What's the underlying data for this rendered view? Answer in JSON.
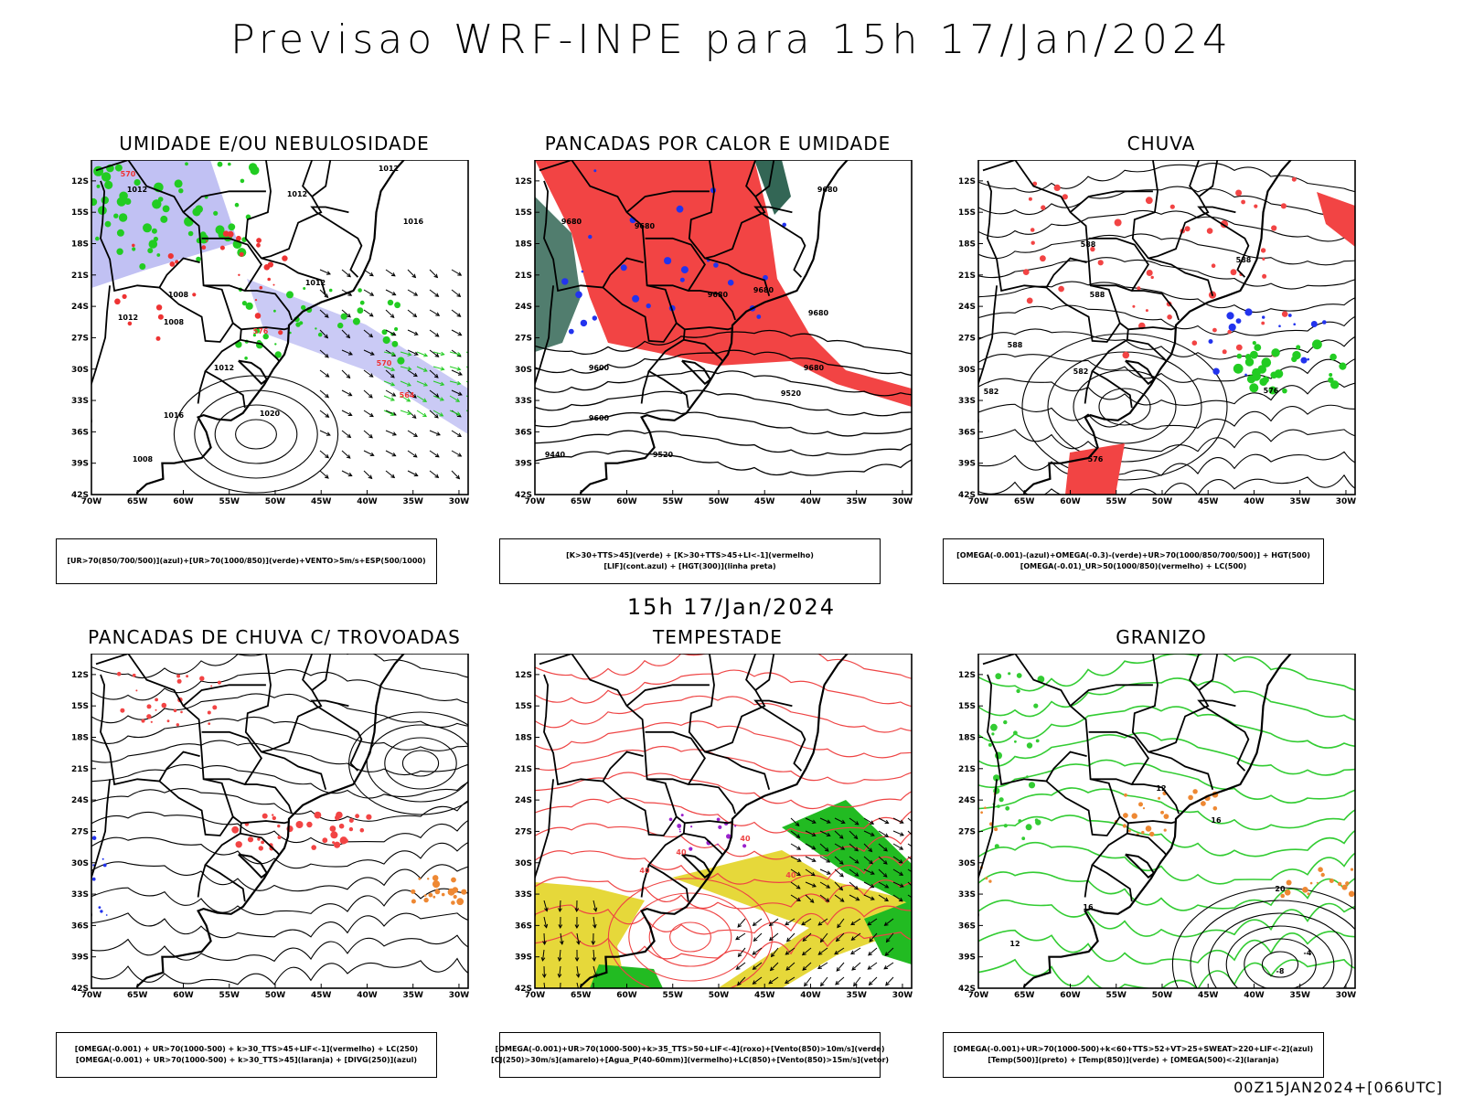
{
  "title": "Previsao WRF-INPE  para 15h 17/Jan/2024",
  "subtitle": "15h 17/Jan/2024",
  "footer": "00Z15JAN2024+[066UTC]",
  "axes": {
    "lat_ticks": [
      "12S",
      "15S",
      "18S",
      "21S",
      "24S",
      "27S",
      "30S",
      "33S",
      "36S",
      "39S",
      "42S"
    ],
    "lon_ticks": [
      "70W",
      "65W",
      "60W",
      "55W",
      "50W",
      "45W",
      "40W",
      "35W",
      "30W"
    ]
  },
  "panels": [
    {
      "title": "UMIDADE E/OU NEBULOSIDADE",
      "legend": [
        "[UR>70(850/700/500)](azul)+[UR>70(1000/850)](verde)+VENTO>5m/s+ESP(500/1000)"
      ],
      "labels": [
        "1012",
        "1012",
        "1012",
        "1016",
        "1012",
        "1008",
        "1012",
        "1008",
        "1012",
        "1016",
        "1020",
        "1008",
        "570",
        "576",
        "570",
        "564"
      ],
      "colors": {
        "blue": "#a7a6ee",
        "green": "#22cc22",
        "red": "#ee3333"
      }
    },
    {
      "title": "PANCADAS POR CALOR E UMIDADE",
      "legend": [
        "[K>30+TTS>45](verde) + [K>30+TTS>45+LI<-1](vermelho)",
        "[LIF](cont.azul) + [HGT(300)](linha preta)"
      ],
      "labels": [
        "9680",
        "9680",
        "9680",
        "9680",
        "9680",
        "9600",
        "9520",
        "9600",
        "9440",
        "9520",
        "9680",
        "9680"
      ],
      "colors": {
        "red": "#f24444",
        "teal": "#336655",
        "blue": "#2233ee"
      }
    },
    {
      "title": "CHUVA",
      "legend": [
        "[OMEGA(-0.001)-(azul)+OMEGA(-0.3)-(verde)+UR>70(1000/850/700/500)] + HGT(500)",
        "[OMEGA(-0.01)_UR>50(1000/850)(vermelho) + LC(500)"
      ],
      "labels": [
        "588",
        "588",
        "588",
        "582",
        "576",
        "588",
        "576",
        "582"
      ],
      "colors": {
        "red": "#f24444",
        "green": "#22cc22",
        "blue": "#2233ee"
      }
    },
    {
      "title": "PANCADAS DE CHUVA C/ TROVOADAS",
      "legend": [
        "[OMEGA(-0.001) + UR>70(1000-500) + k>30_TTS>45+LIF<-1](vermelho) + LC(250)",
        "[OMEGA(-0.001) + UR>70(1000-500) + k>30_TTS>45](laranja) + [DIVG(250)](azul)"
      ],
      "labels": [],
      "colors": {
        "red": "#f24444",
        "orange": "#ee8833",
        "blue": "#2233ee"
      }
    },
    {
      "title": "TEMPESTADE",
      "legend": [
        "[OMEGA(-0.001)+UR>70(1000-500)+k>35_TTS>50+LIF<-4](roxo)+[Vento(850)>10m/s](verde)",
        "[CJ(250)>30m/s](amarelo)+[Agua_P(40-60mm)](vermelho)+LC(850)+[Vento(850)>15m/s](vetor)"
      ],
      "labels": [
        "40",
        "40",
        "40",
        "40"
      ],
      "colors": {
        "yellow": "#e6d83a",
        "green": "#22bb22",
        "red": "#ee4444",
        "purple": "#9922cc"
      }
    },
    {
      "title": "GRANIZO",
      "legend": [
        "[OMEGA(-0.001)+UR>70(1000-500)+k<60+TTS>52+VT>25+SWEAT>220+LIF<-2](azul)",
        "[Temp(500)](preto) + [Temp(850)](verde) + [OMEGA(500)<-2](laranja)"
      ],
      "labels": [
        "12",
        "16",
        "20",
        "16",
        "12",
        "-8",
        "-4"
      ],
      "colors": {
        "green": "#33cc33",
        "orange": "#ee8833"
      }
    }
  ]
}
